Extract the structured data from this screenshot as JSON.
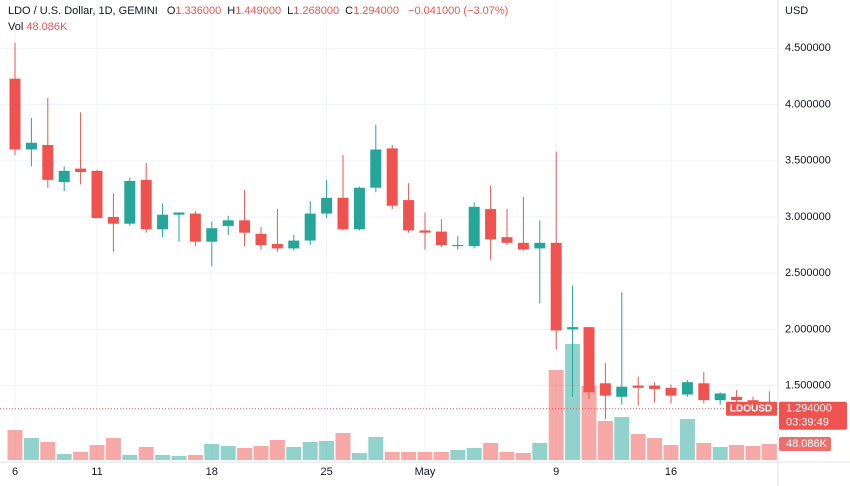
{
  "chart_data": {
    "type": "candlestick",
    "header": {
      "symbol": "LDO / U.S. Dollar, 1D, GEMINI",
      "fields": [
        {
          "key": "O",
          "value": "1.336000"
        },
        {
          "key": "H",
          "value": "1.449000"
        },
        {
          "key": "L",
          "value": "1.268000"
        },
        {
          "key": "C",
          "value": "1.294000"
        }
      ],
      "change": "−0.041000 (−3.07%)",
      "volume_key": "Vol"
    },
    "axis_unit": "USD",
    "categories": [
      "6",
      null,
      null,
      null,
      null,
      "11",
      null,
      null,
      null,
      null,
      null,
      null,
      "18",
      null,
      null,
      null,
      null,
      null,
      null,
      "25",
      null,
      null,
      null,
      null,
      null,
      "May",
      null,
      null,
      null,
      null,
      null,
      null,
      null,
      "9",
      null,
      null,
      null,
      null,
      null,
      null,
      "16",
      null,
      null,
      null,
      null,
      null,
      null
    ],
    "series": [
      {
        "name": "LDOUSD",
        "up_color": "#26a69a",
        "down_color": "#ef5350",
        "open": [
          4.23,
          3.6,
          3.64,
          3.31,
          3.43,
          3.41,
          3.0,
          2.94,
          3.33,
          2.89,
          3.02,
          3.03,
          2.78,
          2.92,
          2.97,
          2.85,
          2.76,
          2.72,
          2.79,
          3.03,
          3.17,
          2.89,
          3.26,
          3.61,
          3.15,
          2.88,
          2.87,
          2.74,
          2.74,
          3.07,
          2.82,
          2.77,
          2.72,
          2.77,
          2.0,
          2.02,
          1.52,
          1.4,
          1.5,
          1.5,
          1.48,
          1.42,
          1.52,
          1.37,
          1.4,
          1.37,
          1.336
        ],
        "high": [
          4.55,
          3.88,
          4.06,
          3.45,
          3.93,
          3.42,
          3.21,
          3.35,
          3.48,
          3.12,
          3.04,
          3.05,
          2.96,
          3.01,
          3.24,
          2.91,
          3.07,
          2.84,
          3.14,
          3.33,
          3.55,
          3.27,
          3.82,
          3.64,
          3.3,
          3.04,
          2.98,
          2.83,
          3.13,
          3.28,
          3.07,
          3.18,
          2.97,
          3.58,
          2.39,
          2.02,
          1.7,
          2.33,
          1.58,
          1.53,
          1.51,
          1.55,
          1.62,
          1.44,
          1.46,
          1.4,
          1.449
        ],
        "low": [
          3.55,
          3.45,
          3.26,
          3.23,
          3.29,
          2.99,
          2.69,
          2.92,
          2.86,
          2.82,
          2.78,
          2.74,
          2.56,
          2.84,
          2.74,
          2.71,
          2.69,
          2.7,
          2.75,
          2.99,
          2.88,
          2.88,
          3.22,
          3.07,
          2.86,
          2.71,
          2.73,
          2.71,
          2.72,
          2.62,
          2.75,
          2.7,
          2.23,
          1.82,
          1.4,
          1.38,
          1.2,
          1.33,
          1.32,
          1.35,
          1.34,
          1.4,
          1.34,
          1.33,
          1.32,
          1.31,
          1.268
        ],
        "close": [
          3.6,
          3.66,
          3.33,
          3.41,
          3.4,
          2.99,
          2.94,
          3.32,
          2.89,
          3.02,
          3.04,
          2.78,
          2.9,
          2.97,
          2.86,
          2.75,
          2.72,
          2.79,
          3.03,
          3.17,
          2.89,
          3.26,
          3.6,
          3.1,
          2.88,
          2.86,
          2.75,
          2.75,
          3.09,
          2.8,
          2.77,
          2.71,
          2.77,
          1.99,
          2.02,
          1.44,
          1.41,
          1.49,
          1.48,
          1.47,
          1.41,
          1.53,
          1.37,
          1.43,
          1.37,
          1.33,
          1.294
        ]
      }
    ],
    "volume": {
      "values": [
        90000,
        66000,
        54000,
        18000,
        24000,
        45000,
        66000,
        15000,
        39000,
        15000,
        12000,
        15000,
        48000,
        42000,
        36000,
        42000,
        60000,
        39000,
        54000,
        57000,
        81000,
        21000,
        69000,
        24000,
        24000,
        24000,
        24000,
        30000,
        36000,
        51000,
        24000,
        21000,
        51000,
        270000,
        348000,
        222000,
        117000,
        129000,
        78000,
        66000,
        45000,
        123000,
        51000,
        39000,
        45000,
        42000,
        48086
      ],
      "last_label": "48.086K",
      "ylim": [
        0,
        1380000
      ]
    },
    "last_price": {
      "value": 1.294,
      "label": "1.294000"
    },
    "countdown": "03:39:49",
    "ylim": [
      0.82,
      4.93
    ],
    "yticks": [
      {
        "value": 1.5,
        "label": "1.500000"
      },
      {
        "value": 2.0,
        "label": "2.000000"
      },
      {
        "value": 2.5,
        "label": "2.500000"
      },
      {
        "value": 3.0,
        "label": "3.000000"
      },
      {
        "value": 3.5,
        "label": "3.500000"
      },
      {
        "value": 4.0,
        "label": "4.000000"
      },
      {
        "value": 4.5,
        "label": "4.500000"
      }
    ],
    "grid": true
  }
}
